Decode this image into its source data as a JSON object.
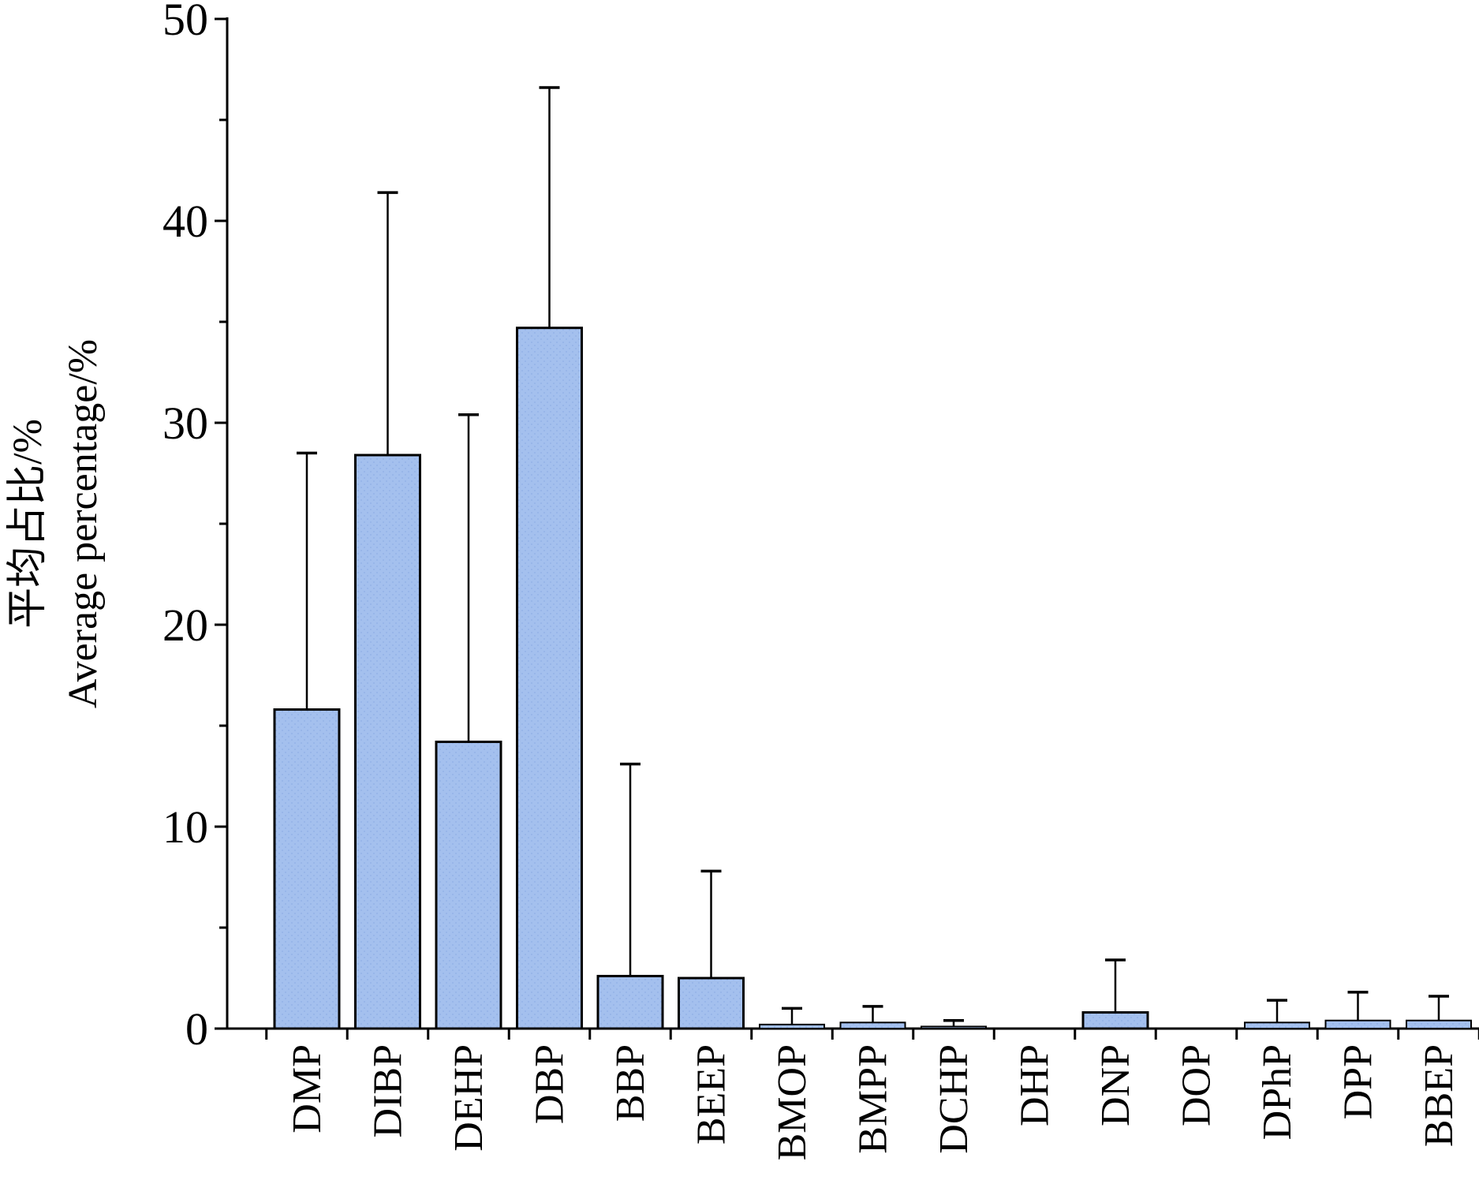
{
  "chart_data": {
    "type": "bar",
    "title": "",
    "xlabel": "",
    "ylabel": [
      "平均占比/%",
      "Average percentage/%"
    ],
    "ylim": [
      0,
      50
    ],
    "yticks": [
      0,
      10,
      20,
      30,
      40,
      50
    ],
    "categories": [
      "DMP",
      "DIBP",
      "DEHP",
      "DBP",
      "BBP",
      "BEEP",
      "BMOP",
      "BMPP",
      "DCHP",
      "DHP",
      "DNP",
      "DOP",
      "DPhP",
      "DPP",
      "BBEP"
    ],
    "values": [
      15.8,
      28.4,
      14.2,
      34.7,
      2.6,
      2.5,
      0.2,
      0.3,
      0.1,
      0,
      0.8,
      0,
      0.3,
      0.4,
      0.4
    ],
    "error_upper": [
      28.5,
      41.4,
      30.4,
      46.6,
      13.1,
      7.8,
      1.0,
      1.1,
      0.4,
      0,
      3.4,
      0,
      1.4,
      1.8,
      1.6
    ],
    "legend": "none",
    "grid": false,
    "colors": {
      "bar_fill": "#a4c0ee",
      "bar_stroke": "#000000",
      "axis": "#000000"
    }
  }
}
